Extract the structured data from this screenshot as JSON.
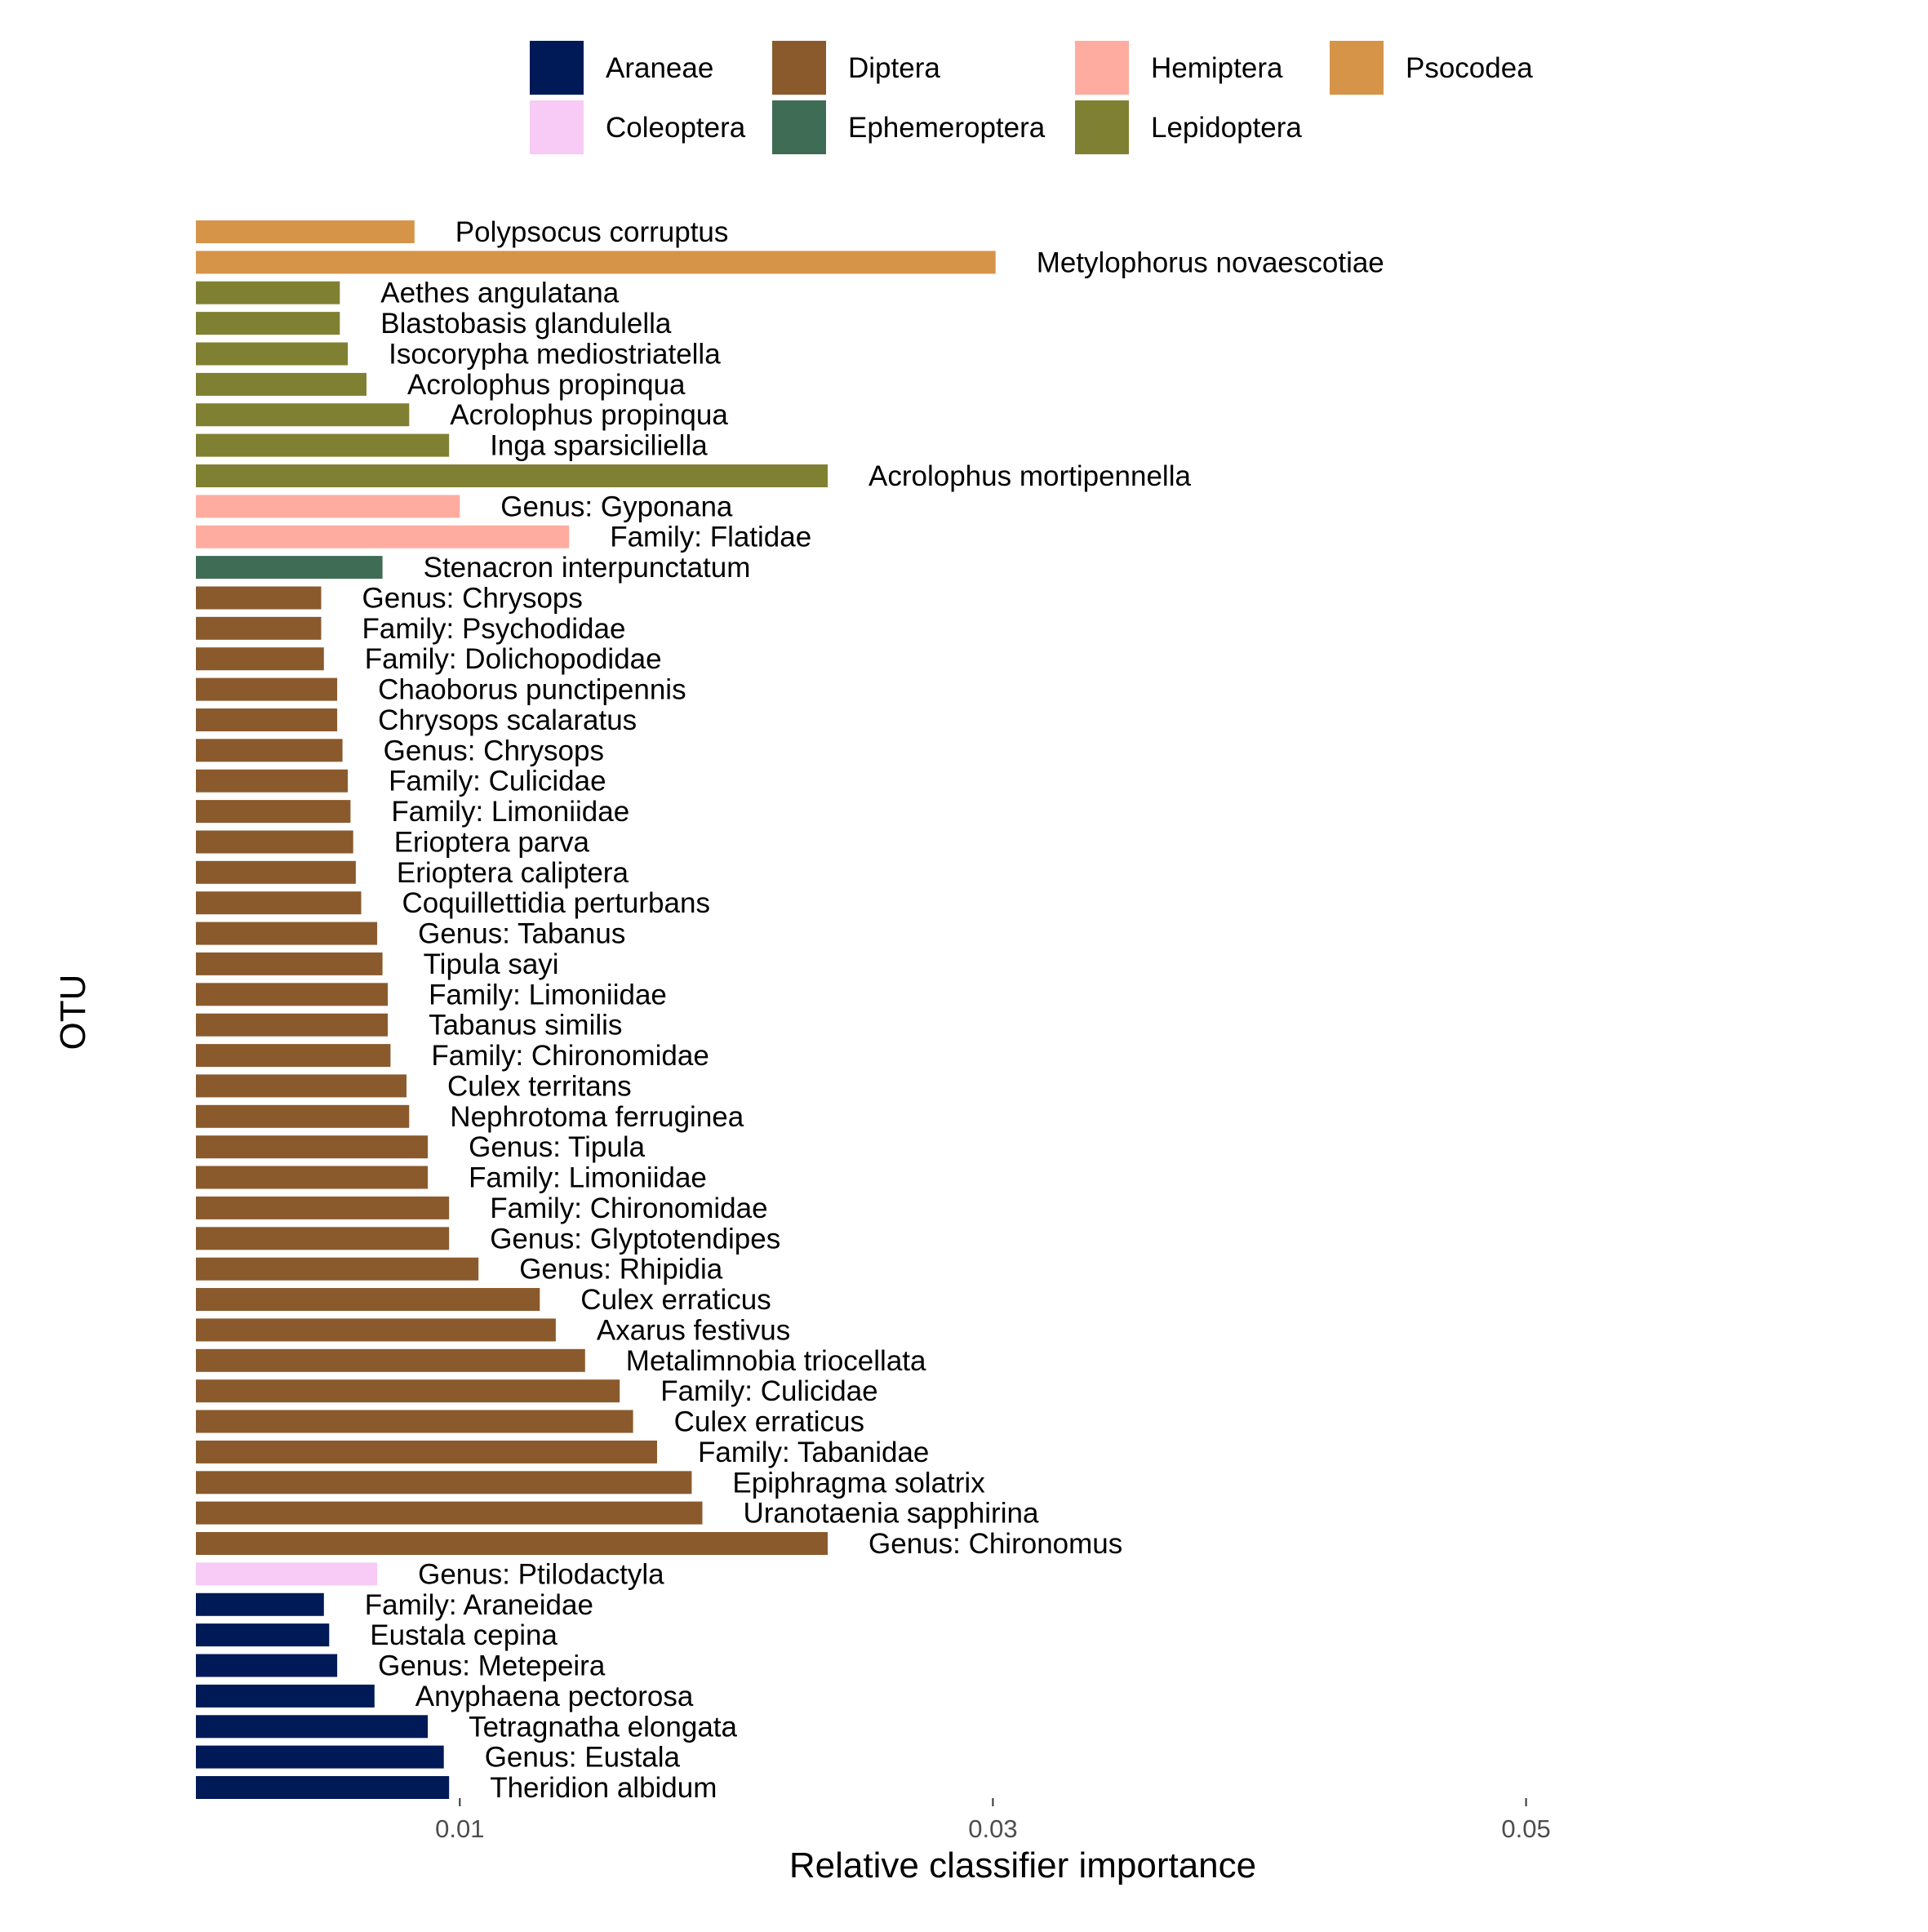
{
  "chart_data": {
    "type": "bar",
    "orientation": "horizontal",
    "title": "",
    "xlabel": "Relative classifier importance",
    "ylabel": "OTU",
    "xlim": [
      0.0001,
      0.0622
    ],
    "xticks": [
      0.01,
      0.03,
      0.05
    ],
    "xtick_labels": [
      "0.01",
      "0.03",
      "0.05"
    ],
    "grid": false,
    "legend_position": "top",
    "legend": [
      {
        "name": "Araneae",
        "color": "#001A57"
      },
      {
        "name": "Coleoptera",
        "color": "#F7CBF5"
      },
      {
        "name": "Diptera",
        "color": "#8A5A2D"
      },
      {
        "name": "Ephemeroptera",
        "color": "#3F6C54"
      },
      {
        "name": "Hemiptera",
        "color": "#FFACA0"
      },
      {
        "name": "Lepidoptera",
        "color": "#808033"
      },
      {
        "name": "Psocodea",
        "color": "#D69449"
      }
    ],
    "bars": [
      {
        "label": "Polypsocus corruptus",
        "order": "Psocodea",
        "value": 0.0083
      },
      {
        "label": "Metylophorus novaescotiae",
        "order": "Psocodea",
        "value": 0.0301
      },
      {
        "label": "Aethes angulatana",
        "order": "Lepidoptera",
        "value": 0.0055
      },
      {
        "label": "Blastobasis glandulella",
        "order": "Lepidoptera",
        "value": 0.0055
      },
      {
        "label": "Isocorypha mediostriatella",
        "order": "Lepidoptera",
        "value": 0.0058
      },
      {
        "label": "Acrolophus propinqua",
        "order": "Lepidoptera",
        "value": 0.0065
      },
      {
        "label": "Acrolophus propinqua",
        "order": "Lepidoptera",
        "value": 0.0081
      },
      {
        "label": "Inga sparsiciliella",
        "order": "Lepidoptera",
        "value": 0.0096
      },
      {
        "label": "Acrolophus mortipennella",
        "order": "Lepidoptera",
        "value": 0.0238
      },
      {
        "label": "Genus: Gyponana",
        "order": "Hemiptera",
        "value": 0.01
      },
      {
        "label": "Family: Flatidae",
        "order": "Hemiptera",
        "value": 0.0141
      },
      {
        "label": "Stenacron interpunctatum",
        "order": "Ephemeroptera",
        "value": 0.0071
      },
      {
        "label": "Genus: Chrysops",
        "order": "Diptera",
        "value": 0.0048
      },
      {
        "label": "Family: Psychodidae",
        "order": "Diptera",
        "value": 0.0048
      },
      {
        "label": "Family: Dolichopodidae",
        "order": "Diptera",
        "value": 0.0049
      },
      {
        "label": "Chaoborus punctipennis",
        "order": "Diptera",
        "value": 0.0054
      },
      {
        "label": "Chrysops scalaratus",
        "order": "Diptera",
        "value": 0.0054
      },
      {
        "label": "Genus: Chrysops",
        "order": "Diptera",
        "value": 0.0056
      },
      {
        "label": "Family: Culicidae",
        "order": "Diptera",
        "value": 0.0058
      },
      {
        "label": "Family: Limoniidae",
        "order": "Diptera",
        "value": 0.0059
      },
      {
        "label": "Erioptera parva",
        "order": "Diptera",
        "value": 0.006
      },
      {
        "label": "Erioptera caliptera",
        "order": "Diptera",
        "value": 0.0061
      },
      {
        "label": "Coquillettidia perturbans",
        "order": "Diptera",
        "value": 0.0063
      },
      {
        "label": "Genus: Tabanus",
        "order": "Diptera",
        "value": 0.0069
      },
      {
        "label": "Tipula sayi",
        "order": "Diptera",
        "value": 0.0071
      },
      {
        "label": "Family: Limoniidae",
        "order": "Diptera",
        "value": 0.0073
      },
      {
        "label": "Tabanus similis",
        "order": "Diptera",
        "value": 0.0073
      },
      {
        "label": "Family: Chironomidae",
        "order": "Diptera",
        "value": 0.0074
      },
      {
        "label": "Culex territans",
        "order": "Diptera",
        "value": 0.008
      },
      {
        "label": "Nephrotoma ferruginea",
        "order": "Diptera",
        "value": 0.0081
      },
      {
        "label": "Genus: Tipula",
        "order": "Diptera",
        "value": 0.0088
      },
      {
        "label": "Family: Limoniidae",
        "order": "Diptera",
        "value": 0.0088
      },
      {
        "label": "Family: Chironomidae",
        "order": "Diptera",
        "value": 0.0096
      },
      {
        "label": "Genus: Glyptotendipes",
        "order": "Diptera",
        "value": 0.0096
      },
      {
        "label": "Genus: Rhipidia",
        "order": "Diptera",
        "value": 0.0107
      },
      {
        "label": "Culex erraticus",
        "order": "Diptera",
        "value": 0.013
      },
      {
        "label": "Axarus festivus",
        "order": "Diptera",
        "value": 0.0136
      },
      {
        "label": "Metalimnobia triocellata",
        "order": "Diptera",
        "value": 0.0147
      },
      {
        "label": "Family: Culicidae",
        "order": "Diptera",
        "value": 0.016
      },
      {
        "label": "Culex erraticus",
        "order": "Diptera",
        "value": 0.0165
      },
      {
        "label": "Family: Tabanidae",
        "order": "Diptera",
        "value": 0.0174
      },
      {
        "label": "Epiphragma solatrix",
        "order": "Diptera",
        "value": 0.0187
      },
      {
        "label": "Uranotaenia sapphirina",
        "order": "Diptera",
        "value": 0.0191
      },
      {
        "label": "Genus: Chironomus",
        "order": "Diptera",
        "value": 0.0238
      },
      {
        "label": "Genus: Ptilodactyla",
        "order": "Coleoptera",
        "value": 0.0069
      },
      {
        "label": "Family: Araneidae",
        "order": "Araneae",
        "value": 0.0049
      },
      {
        "label": "Eustala cepina",
        "order": "Araneae",
        "value": 0.0051
      },
      {
        "label": "Genus: Metepeira",
        "order": "Araneae",
        "value": 0.0054
      },
      {
        "label": "Anyphaena pectorosa",
        "order": "Araneae",
        "value": 0.0068
      },
      {
        "label": "Tetragnatha elongata",
        "order": "Araneae",
        "value": 0.0088
      },
      {
        "label": "Genus: Eustala",
        "order": "Araneae",
        "value": 0.0094
      },
      {
        "label": "Theridion albidum",
        "order": "Araneae",
        "value": 0.0096
      }
    ]
  }
}
